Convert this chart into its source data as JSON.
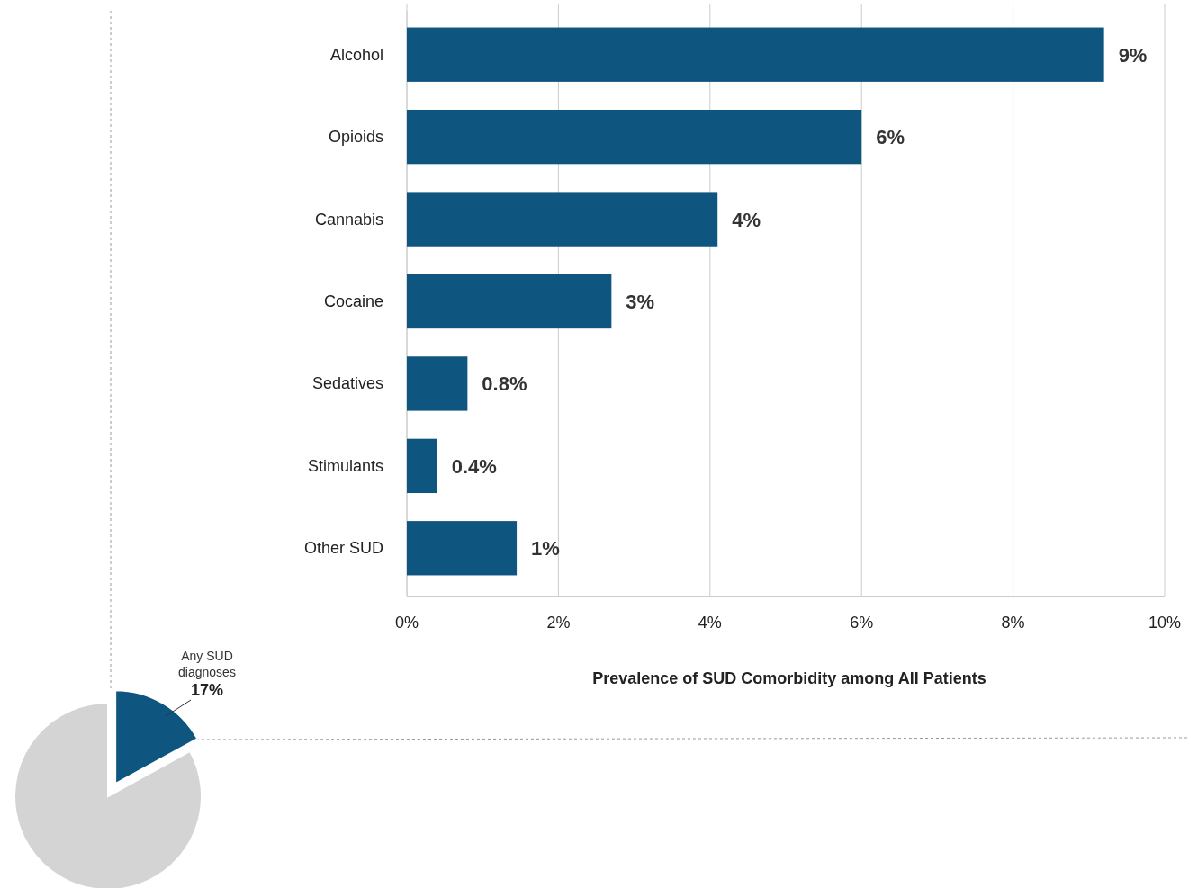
{
  "chart_data": [
    {
      "type": "bar",
      "orientation": "horizontal",
      "xlabel": "Prevalence of SUD Comorbidity among All Patients",
      "categories": [
        "Alcohol",
        "Opioids",
        "Cannabis",
        "Cocaine",
        "Sedatives",
        "Stimulants",
        "Other SUD"
      ],
      "values": [
        9.2,
        6.0,
        4.1,
        2.7,
        0.8,
        0.4,
        1.45
      ],
      "value_labels": [
        "9%",
        "6%",
        "4%",
        "3%",
        "0.8%",
        "0.4%",
        "1%"
      ],
      "color": "#0e5580",
      "xlim": [
        0,
        10
      ],
      "xticks": [
        {
          "value": 0,
          "label": "0%"
        },
        {
          "value": 2,
          "label": "2%"
        },
        {
          "value": 4,
          "label": "4%"
        },
        {
          "value": 6,
          "label": "6%"
        },
        {
          "value": 8,
          "label": "8%"
        },
        {
          "value": 10,
          "label": "10%"
        }
      ],
      "grid": "x"
    },
    {
      "type": "pie",
      "categories": [
        "Any SUD diagnoses",
        null
      ],
      "values": [
        17,
        83
      ],
      "colors": [
        "#0e5580",
        "#d4d4d4"
      ],
      "value_labels": [
        "17%",
        null
      ]
    }
  ]
}
